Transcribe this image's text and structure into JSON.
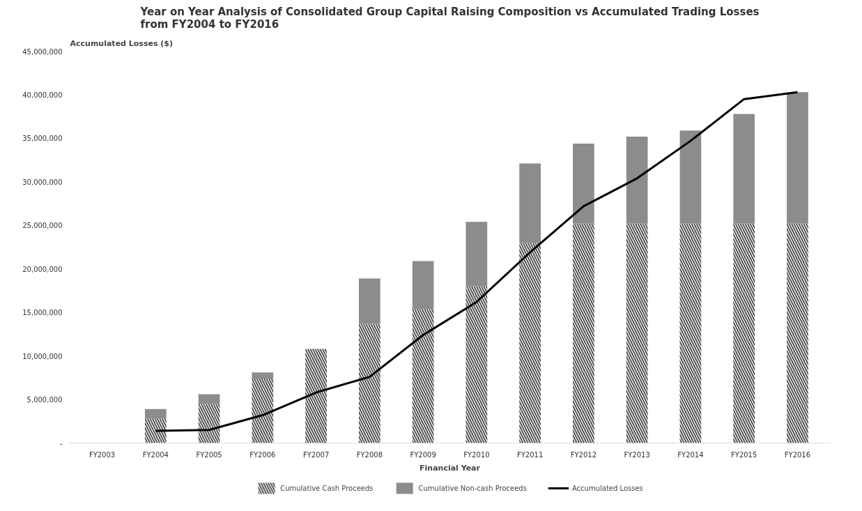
{
  "chart_data": {
    "type": "bar",
    "stacked": true,
    "title": "Year on Year Analysis of Consolidated Group Capital Raising Composition vs Accumulated Trading Losses\nfrom FY2004 to FY2016",
    "xlabel": "Financial Year",
    "ylabel": "Accumulated Losses ($)",
    "categories": [
      "FY2003",
      "FY2004",
      "FY2005",
      "FY2006",
      "FY2007",
      "FY2008",
      "FY2009",
      "FY2010",
      "FY2011",
      "FY2012",
      "FY2013",
      "FY2014",
      "FY2015",
      "FY2016"
    ],
    "series": [
      {
        "name": "Cumulative Cash Proceeds",
        "color": "#d9d9d9",
        "values": [
          0,
          2800000,
          4500000,
          7400000,
          10800000,
          13700000,
          15400000,
          18000000,
          23000000,
          25200000,
          25200000,
          25200000,
          25200000,
          25200000
        ]
      },
      {
        "name": "Cumulative Non-cash Proceeds",
        "color": "#8c8c8c",
        "values": [
          0,
          1100000,
          1100000,
          700000,
          0,
          5200000,
          5500000,
          7400000,
          9100000,
          9200000,
          10000000,
          10700000,
          12600000,
          15100000
        ]
      },
      {
        "name": "Accumulated Losses",
        "type": "line",
        "color": "#000000",
        "values": [
          null,
          1400000,
          1500000,
          3200000,
          5800000,
          7600000,
          12400000,
          16200000,
          21900000,
          27200000,
          30400000,
          34700000,
          39500000,
          40300000
        ]
      }
    ],
    "ylim": [
      0,
      45000000
    ],
    "yticks": [
      {
        "value": 0,
        "label": "-"
      },
      {
        "value": 5000000,
        "label": "5,000,000"
      },
      {
        "value": 10000000,
        "label": "10,000,000"
      },
      {
        "value": 15000000,
        "label": "15,000,000"
      },
      {
        "value": 20000000,
        "label": "20,000,000"
      },
      {
        "value": 25000000,
        "label": "25,000,000"
      },
      {
        "value": 30000000,
        "label": "30,000,000"
      },
      {
        "value": 35000000,
        "label": "35,000,000"
      },
      {
        "value": 40000000,
        "label": "40,000,000"
      },
      {
        "value": 45000000,
        "label": "45,000,000"
      }
    ],
    "grid": false,
    "legend": "bottom",
    "line_style": "solid",
    "marker": "none"
  }
}
